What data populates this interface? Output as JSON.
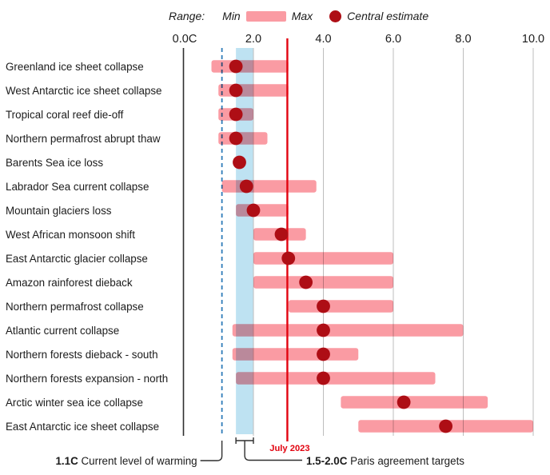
{
  "chart_data": {
    "type": "range-dot",
    "title": "",
    "legend": {
      "range_label": "Range:",
      "min_label": "Min",
      "max_label": "Max",
      "central_label": "Central estimate"
    },
    "x_axis": {
      "tick_labels": [
        "0.0C",
        "2.0",
        "4.0",
        "6.0",
        "8.0",
        "10.0"
      ],
      "tick_values": [
        0,
        2,
        4,
        6,
        8,
        10
      ],
      "min": 0,
      "max": 10.2,
      "unit": "C",
      "grid": true
    },
    "rows": [
      {
        "label": "Greenland ice sheet collapse",
        "min": 0.8,
        "central": 1.5,
        "max": 3.0
      },
      {
        "label": "West Antarctic ice sheet collapse",
        "min": 1.0,
        "central": 1.5,
        "max": 3.0
      },
      {
        "label": "Tropical coral reef die-off",
        "min": 1.0,
        "central": 1.5,
        "max": 2.0
      },
      {
        "label": "Northern permafrost abrupt thaw",
        "min": 1.0,
        "central": 1.5,
        "max": 2.4
      },
      {
        "label": "Barents Sea ice loss",
        "min": 1.5,
        "central": 1.6,
        "max": 1.7
      },
      {
        "label": "Labrador Sea current collapse",
        "min": 1.1,
        "central": 1.8,
        "max": 3.8
      },
      {
        "label": "Mountain glaciers loss",
        "min": 1.5,
        "central": 2.0,
        "max": 3.0
      },
      {
        "label": "West African monsoon shift",
        "min": 2.0,
        "central": 2.8,
        "max": 3.5
      },
      {
        "label": "East Antarctic glacier collapse",
        "min": 2.0,
        "central": 3.0,
        "max": 6.0
      },
      {
        "label": "Amazon rainforest dieback",
        "min": 2.0,
        "central": 3.5,
        "max": 6.0
      },
      {
        "label": "Northern permafrost collapse",
        "min": 3.0,
        "central": 4.0,
        "max": 6.0
      },
      {
        "label": "Atlantic current collapse",
        "min": 1.4,
        "central": 4.0,
        "max": 8.0
      },
      {
        "label": "Northern forests dieback - south",
        "min": 1.4,
        "central": 4.0,
        "max": 5.0
      },
      {
        "label": "Northern forests expansion - north",
        "min": 1.5,
        "central": 4.0,
        "max": 7.2
      },
      {
        "label": "Arctic winter sea ice collapse",
        "min": 4.5,
        "central": 6.3,
        "max": 8.7
      },
      {
        "label": "East Antarctic ice sheet collapse",
        "min": 5.0,
        "central": 7.5,
        "max": 10.0
      }
    ],
    "annotations": {
      "current_warming": {
        "value": 1.1,
        "bold_label": "1.1C",
        "label": "Current level of warming"
      },
      "paris_band": {
        "from": 1.5,
        "to": 2.0,
        "bold_label": "1.5-2.0C",
        "label": "Paris agreement targets"
      },
      "july_2023": {
        "value": 2.97,
        "label": "July 2023"
      }
    },
    "colors": {
      "bar": "#FA9BA3",
      "band": "#BEE2F2",
      "dashed_line": "#2E7CB9",
      "red_line": "#E2030F",
      "dot": "#AE0E15",
      "gridline": "#BDBDBD",
      "axis": "#2F2F2F",
      "text": "#1B1B1B"
    }
  }
}
